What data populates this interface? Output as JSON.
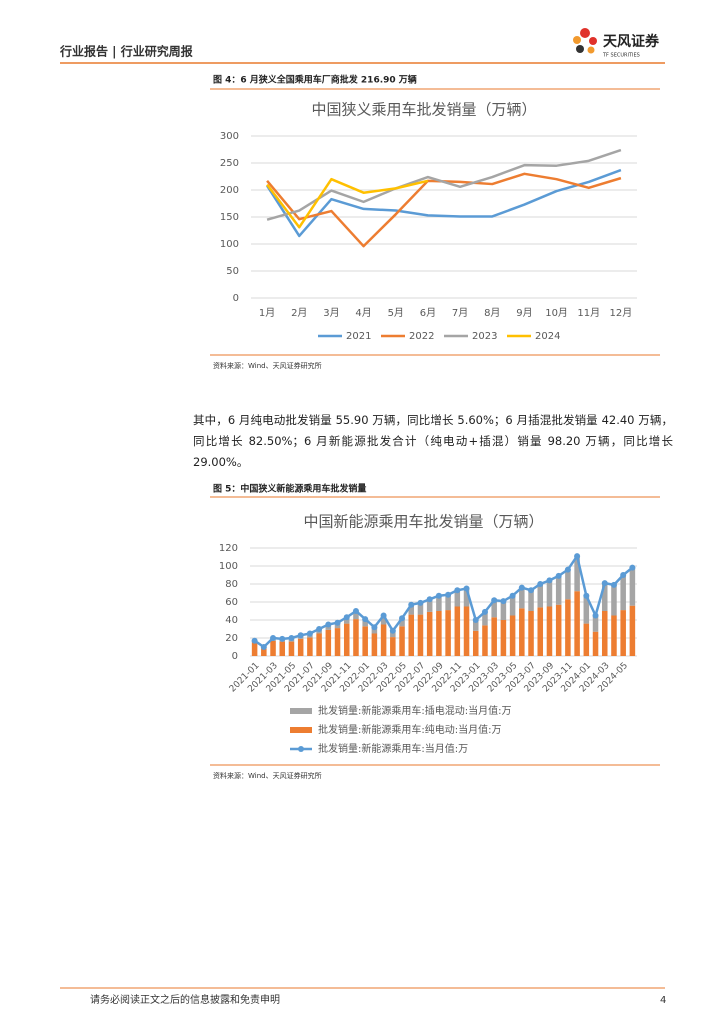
{
  "header": {
    "title": "行业报告 | 行业研究周报",
    "logo": "天风证券",
    "logo_sub": "TF SECURITIES"
  },
  "figure4": {
    "caption": "图 4：6 月狭义全国乘用车厂商批发 216.90 万辆",
    "source": "资料来源：Wind、天风证券研究所"
  },
  "paragraph": "其中，6 月纯电动批发销量 55.90 万辆，同比增长 5.60%；6 月插混批发销量 42.40 万辆，同比增长 82.50%；6 月新能源批发合计（纯电动+插混）销量 98.20 万辆，同比增长 29.00%。",
  "figure5": {
    "caption": "图 5：中国狭义新能源乘用车批发销量",
    "source": "资料来源：Wind、天风证券研究所"
  },
  "footer": {
    "text": "请务必阅读正文之后的信息披露和免责申明",
    "page": "4"
  },
  "chart_data": [
    {
      "type": "line",
      "title": "中国狭义乘用车批发销量（万辆）",
      "categories": [
        "1月",
        "2月",
        "3月",
        "4月",
        "5月",
        "6月",
        "7月",
        "8月",
        "9月",
        "10月",
        "11月",
        "12月"
      ],
      "series": [
        {
          "name": "2021",
          "color": "#5b9bd5",
          "values": [
            208,
            115,
            183,
            165,
            162,
            153,
            151,
            151,
            173,
            198,
            215,
            237
          ]
        },
        {
          "name": "2022",
          "color": "#ed7d31",
          "values": [
            217,
            146,
            161,
            96,
            155,
            217,
            215,
            211,
            230,
            220,
            204,
            222
          ]
        },
        {
          "name": "2023",
          "color": "#a5a5a5",
          "values": [
            145,
            162,
            199,
            178,
            203,
            224,
            206,
            224,
            246,
            245,
            254,
            274
          ]
        },
        {
          "name": "2024",
          "color": "#ffc000",
          "values": [
            210,
            131,
            220,
            195,
            203,
            217,
            null,
            null,
            null,
            null,
            null,
            null
          ]
        }
      ],
      "ylim": [
        0,
        300
      ],
      "yticks": [
        0,
        50,
        100,
        150,
        200,
        250,
        300
      ],
      "legend": "bottom"
    },
    {
      "type": "bar",
      "stacked": true,
      "title": "中国新能源乘用车批发销量（万辆）",
      "categories": [
        "2021-01",
        null,
        "2021-03",
        null,
        "2021-05",
        null,
        "2021-07",
        null,
        "2021-09",
        null,
        "2021-11",
        null,
        "2022-01",
        null,
        "2022-03",
        null,
        "2022-05",
        null,
        "2022-07",
        null,
        "2022-09",
        null,
        "2022-11",
        null,
        "2023-01",
        null,
        "2023-03",
        null,
        "2023-05",
        null,
        "2023-07",
        null,
        "2023-09",
        null,
        "2023-11",
        null,
        "2024-01",
        null,
        "2024-03",
        null,
        "2024-05",
        null
      ],
      "series": [
        {
          "name": "批发销量:新能源乘用车:纯电动:当月值:万",
          "type": "bar",
          "color": "#ed7d31",
          "values": [
            15,
            8.5,
            17,
            16,
            16,
            19,
            20.5,
            25,
            29,
            31,
            36,
            41,
            33,
            25,
            35,
            21,
            33,
            46,
            46,
            49,
            50,
            51,
            55,
            55,
            28,
            34,
            43,
            40,
            45,
            53,
            50,
            54,
            55,
            57,
            63,
            72,
            36,
            27,
            50,
            45,
            51,
            55.9
          ]
        },
        {
          "name": "批发销量:新能源乘用车:插电混动:当月值:万",
          "type": "bar",
          "color": "#a5a5a5",
          "values": [
            2,
            1.5,
            3,
            3,
            4,
            4,
            4.5,
            5,
            6,
            6,
            7,
            9,
            8,
            7,
            10,
            7,
            9,
            11,
            13,
            14,
            17,
            17,
            18,
            20,
            12,
            15,
            19,
            21,
            22,
            23,
            23,
            26,
            29,
            32,
            33,
            39,
            31,
            18,
            31,
            34,
            39,
            42.4
          ]
        },
        {
          "name": "批发销量:新能源乘用车:当月值:万",
          "type": "line",
          "color": "#5b9bd5",
          "values": [
            17,
            10,
            20,
            19,
            20,
            23,
            25,
            30,
            35,
            37,
            43,
            50,
            41,
            32,
            45,
            28,
            42,
            57,
            59,
            63,
            67,
            68,
            73,
            75,
            40,
            49,
            62,
            61,
            67,
            76,
            73,
            80,
            84,
            89,
            96,
            111,
            67,
            45,
            81,
            79,
            90,
            98.2
          ]
        }
      ],
      "ylim": [
        0,
        120
      ],
      "yticks": [
        0,
        20,
        40,
        60,
        80,
        100,
        120
      ],
      "legend": "bottom"
    }
  ]
}
